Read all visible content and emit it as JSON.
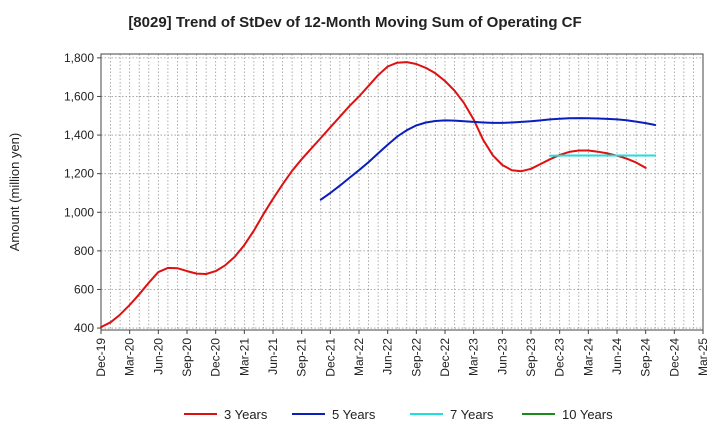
{
  "chart_data": {
    "type": "line",
    "title": "[8029]  Trend of StDev of 12-Month Moving Sum of Operating CF",
    "ylabel": "Amount (million yen)",
    "xlabel": "",
    "ylim": [
      390,
      1820
    ],
    "yticks": [
      400,
      600,
      800,
      1000,
      1200,
      1400,
      1600,
      1800
    ],
    "yticklabels": [
      "400",
      "600",
      "800",
      "1,000",
      "1,200",
      "1,400",
      "1,600",
      "1,800"
    ],
    "xticks": [
      "Dec-19",
      "Mar-20",
      "Jun-20",
      "Sep-20",
      "Dec-20",
      "Mar-21",
      "Jun-21",
      "Sep-21",
      "Dec-21",
      "Mar-22",
      "Jun-22",
      "Sep-22",
      "Dec-22",
      "Mar-23",
      "Jun-23",
      "Sep-23",
      "Dec-23",
      "Mar-24",
      "Jun-24",
      "Sep-24",
      "Dec-24",
      "Mar-25"
    ],
    "grid": true,
    "legend_position": "bottom",
    "series": [
      {
        "name": "3 Years",
        "color": "#dd1111",
        "points": [
          [
            "Dec-19",
            405
          ],
          [
            "Jan-20",
            430
          ],
          [
            "Feb-20",
            470
          ],
          [
            "Mar-20",
            520
          ],
          [
            "Apr-20",
            575
          ],
          [
            "May-20",
            635
          ],
          [
            "Jun-20",
            690
          ],
          [
            "Jul-20",
            712
          ],
          [
            "Aug-20",
            710
          ],
          [
            "Sep-20",
            695
          ],
          [
            "Oct-20",
            682
          ],
          [
            "Nov-20",
            680
          ],
          [
            "Dec-20",
            695
          ],
          [
            "Jan-21",
            725
          ],
          [
            "Feb-21",
            770
          ],
          [
            "Mar-21",
            830
          ],
          [
            "Apr-21",
            905
          ],
          [
            "May-21",
            990
          ],
          [
            "Jun-21",
            1070
          ],
          [
            "Jul-21",
            1145
          ],
          [
            "Aug-21",
            1215
          ],
          [
            "Sep-21",
            1275
          ],
          [
            "Oct-21",
            1330
          ],
          [
            "Nov-21",
            1385
          ],
          [
            "Dec-21",
            1440
          ],
          [
            "Jan-22",
            1495
          ],
          [
            "Feb-22",
            1550
          ],
          [
            "Mar-22",
            1600
          ],
          [
            "Apr-22",
            1655
          ],
          [
            "May-22",
            1710
          ],
          [
            "Jun-22",
            1755
          ],
          [
            "Jul-22",
            1775
          ],
          [
            "Aug-22",
            1778
          ],
          [
            "Sep-22",
            1768
          ],
          [
            "Oct-22",
            1748
          ],
          [
            "Nov-22",
            1720
          ],
          [
            "Dec-22",
            1680
          ],
          [
            "Jan-23",
            1630
          ],
          [
            "Feb-23",
            1565
          ],
          [
            "Mar-23",
            1480
          ],
          [
            "Apr-23",
            1375
          ],
          [
            "May-23",
            1295
          ],
          [
            "Jun-23",
            1245
          ],
          [
            "Jul-23",
            1218
          ],
          [
            "Aug-23",
            1213
          ],
          [
            "Sep-23",
            1225
          ],
          [
            "Oct-23",
            1250
          ],
          [
            "Nov-23",
            1275
          ],
          [
            "Dec-23",
            1297
          ],
          [
            "Jan-24",
            1313
          ],
          [
            "Feb-24",
            1320
          ],
          [
            "Mar-24",
            1320
          ],
          [
            "Apr-24",
            1314
          ],
          [
            "May-24",
            1305
          ],
          [
            "Jun-24",
            1293
          ],
          [
            "Jul-24",
            1278
          ],
          [
            "Aug-24",
            1258
          ],
          [
            "Sep-24",
            1230
          ]
        ]
      },
      {
        "name": "5 Years",
        "color": "#0b1ebd",
        "points": [
          [
            "Nov-21",
            1065
          ],
          [
            "Dec-21",
            1100
          ],
          [
            "Jan-22",
            1138
          ],
          [
            "Feb-22",
            1178
          ],
          [
            "Mar-22",
            1218
          ],
          [
            "Apr-22",
            1260
          ],
          [
            "May-22",
            1305
          ],
          [
            "Jun-22",
            1350
          ],
          [
            "Jul-22",
            1392
          ],
          [
            "Aug-22",
            1425
          ],
          [
            "Sep-22",
            1450
          ],
          [
            "Oct-22",
            1465
          ],
          [
            "Nov-22",
            1473
          ],
          [
            "Dec-22",
            1476
          ],
          [
            "Jan-23",
            1475
          ],
          [
            "Feb-23",
            1472
          ],
          [
            "Mar-23",
            1468
          ],
          [
            "Apr-23",
            1465
          ],
          [
            "May-23",
            1463
          ],
          [
            "Jun-23",
            1463
          ],
          [
            "Jul-23",
            1465
          ],
          [
            "Aug-23",
            1468
          ],
          [
            "Sep-23",
            1472
          ],
          [
            "Oct-23",
            1476
          ],
          [
            "Nov-23",
            1481
          ],
          [
            "Dec-23",
            1485
          ],
          [
            "Jan-24",
            1487
          ],
          [
            "Feb-24",
            1488
          ],
          [
            "Mar-24",
            1487
          ],
          [
            "Apr-24",
            1486
          ],
          [
            "May-24",
            1484
          ],
          [
            "Jun-24",
            1481
          ],
          [
            "Jul-24",
            1477
          ],
          [
            "Aug-24",
            1470
          ],
          [
            "Sep-24",
            1462
          ],
          [
            "Oct-24",
            1452
          ]
        ]
      },
      {
        "name": "7 Years",
        "color": "#22dddd",
        "points": [
          [
            "Nov-23",
            1293
          ],
          [
            "Jan-24",
            1294
          ],
          [
            "Mar-24",
            1294
          ],
          [
            "May-24",
            1294
          ],
          [
            "Jul-24",
            1294
          ],
          [
            "Sep-24",
            1294
          ],
          [
            "Oct-24",
            1294
          ]
        ]
      },
      {
        "name": "10 Years",
        "color": "#1a8a1a",
        "points": []
      }
    ]
  }
}
